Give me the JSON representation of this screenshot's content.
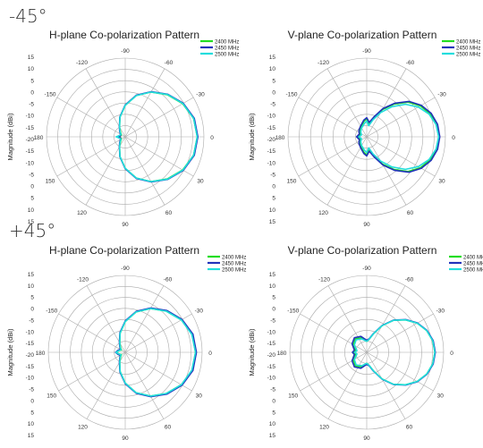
{
  "sections": [
    {
      "label": "-45°"
    },
    {
      "label": "+45°"
    }
  ],
  "colors": {
    "2400 MHz": "#22dd22",
    "2450 MHz": "#2233bb",
    "2500 MHz": "#22dddd",
    "grid": "#aaaaaa"
  },
  "chart_data": [
    {
      "type": "polar-line",
      "title": "H-plane Co-polarization Pattern",
      "ylabel": "Magnitude (dBi)",
      "angle_ticks": [
        "-90",
        "-120",
        "-150",
        "180",
        "150",
        "120",
        "90",
        "60",
        "30",
        "0",
        "-30",
        "-60"
      ],
      "radial_ticks": [
        "15",
        "10",
        "5",
        "0",
        "-5",
        "-10",
        "-15",
        "-20",
        "-15",
        "-10",
        "-5",
        "0",
        "5",
        "10",
        "15"
      ],
      "rlim": [
        -20,
        15
      ],
      "series": [
        {
          "name": "2400 MHz",
          "angles": [
            0,
            15,
            30,
            45,
            60,
            75,
            90,
            105,
            120,
            135,
            150,
            165,
            180,
            195,
            210,
            225,
            240,
            255,
            270,
            285,
            300,
            315,
            330,
            345
          ],
          "values": [
            12,
            11.5,
            9.5,
            6.5,
            3,
            -1,
            -6,
            -11,
            -15,
            -17,
            -18,
            -18,
            -17,
            -18,
            -18,
            -17,
            -15,
            -11,
            -6,
            -1,
            3,
            6.5,
            9.5,
            11.5
          ]
        },
        {
          "name": "2450 MHz",
          "angles": [
            0,
            15,
            30,
            45,
            60,
            75,
            90,
            105,
            120,
            135,
            150,
            165,
            180,
            195,
            210,
            225,
            240,
            255,
            270,
            285,
            300,
            315,
            330,
            345
          ],
          "values": [
            12.3,
            11.8,
            9.8,
            6.8,
            3.2,
            -0.8,
            -5.8,
            -10.8,
            -14.8,
            -16.5,
            -17.5,
            -17.8,
            -17.2,
            -17.8,
            -17.5,
            -16.5,
            -14.8,
            -10.8,
            -5.8,
            -0.8,
            3.2,
            6.8,
            9.8,
            11.8
          ]
        },
        {
          "name": "2500 MHz",
          "angles": [
            0,
            15,
            30,
            45,
            60,
            75,
            90,
            105,
            120,
            135,
            150,
            165,
            180,
            195,
            210,
            225,
            240,
            255,
            270,
            285,
            300,
            315,
            330,
            345
          ],
          "values": [
            12,
            11.5,
            9.6,
            6.6,
            3,
            -1,
            -6,
            -11,
            -15,
            -16.8,
            -17.8,
            -17.5,
            -16,
            -17.5,
            -17.8,
            -16.8,
            -15,
            -11,
            -6,
            -1,
            3,
            6.6,
            9.6,
            11.5
          ]
        }
      ],
      "legend": "top-right"
    },
    {
      "type": "polar-line",
      "title": "V-plane Co-polarization Pattern",
      "ylabel": "Magnitude (dBi)",
      "angle_ticks": [
        "-90",
        "-120",
        "-150",
        "180",
        "150",
        "120",
        "90",
        "60",
        "30",
        "0",
        "-30",
        "-60"
      ],
      "radial_ticks": [
        "15",
        "10",
        "5",
        "0",
        "-5",
        "-10",
        "-15",
        "-20",
        "-15",
        "-10",
        "-5",
        "0",
        "5",
        "10",
        "15"
      ],
      "rlim": [
        -20,
        15
      ],
      "series": [
        {
          "name": "2400 MHz",
          "angles": [
            0,
            10,
            20,
            30,
            40,
            50,
            60,
            70,
            80,
            90,
            100,
            120,
            140,
            160,
            180,
            200,
            220,
            240,
            260,
            270,
            280,
            290,
            300,
            310,
            320,
            330,
            340,
            350
          ],
          "values": [
            12,
            11.5,
            10,
            7.5,
            4,
            -1,
            -6,
            -11,
            -14,
            -12,
            -13,
            -15,
            -16,
            -17,
            -16,
            -17,
            -16,
            -15,
            -13,
            -12,
            -14,
            -11,
            -6,
            -1,
            4,
            7.5,
            10,
            11.5
          ]
        },
        {
          "name": "2450 MHz",
          "angles": [
            0,
            10,
            20,
            30,
            40,
            50,
            60,
            70,
            80,
            90,
            100,
            120,
            140,
            160,
            180,
            200,
            220,
            240,
            260,
            270,
            280,
            290,
            300,
            310,
            320,
            330,
            340,
            350
          ],
          "values": [
            12.5,
            12,
            10.5,
            8,
            4.5,
            -0.5,
            -5.5,
            -10.5,
            -13.5,
            -11.5,
            -12.5,
            -14.5,
            -15.5,
            -16.5,
            -15.5,
            -16.5,
            -15.5,
            -14.5,
            -12.5,
            -11.5,
            -13.5,
            -10.5,
            -5.5,
            -0.5,
            4.5,
            8,
            10.5,
            12
          ]
        },
        {
          "name": "2500 MHz",
          "angles": [
            0,
            10,
            20,
            30,
            40,
            50,
            60,
            70,
            80,
            90,
            100,
            120,
            140,
            160,
            180,
            200,
            220,
            240,
            260,
            270,
            280,
            290,
            300,
            310,
            320,
            330,
            340,
            350
          ],
          "values": [
            12,
            11.3,
            9.5,
            6.5,
            2.5,
            -2.5,
            -7.5,
            -12,
            -15,
            -13,
            -14,
            -15.5,
            -16.5,
            -17.5,
            -16.5,
            -17.5,
            -16.5,
            -15.5,
            -14,
            -13,
            -15,
            -12,
            -7.5,
            -2.5,
            2.5,
            6.5,
            9.5,
            11.3
          ]
        }
      ],
      "legend": "top-right"
    },
    {
      "type": "polar-line",
      "title": "H-plane Co-polarization Pattern",
      "ylabel": "Magnitude (dBi)",
      "angle_ticks": [
        "-90",
        "-120",
        "-150",
        "180",
        "150",
        "120",
        "90",
        "60",
        "30",
        "0",
        "-30",
        "-60"
      ],
      "radial_ticks": [
        "15",
        "10",
        "5",
        "0",
        "-5",
        "-10",
        "-15",
        "-20",
        "-15",
        "-10",
        "-5",
        "0",
        "5",
        "10",
        "15"
      ],
      "rlim": [
        -20,
        15
      ],
      "series": [
        {
          "name": "2400 MHz",
          "angles": [
            0,
            15,
            30,
            45,
            60,
            75,
            90,
            105,
            120,
            135,
            150,
            165,
            180,
            195,
            210,
            225,
            240,
            255,
            270,
            285,
            300,
            315,
            330,
            345
          ],
          "values": [
            12,
            11.5,
            9.5,
            6.5,
            3,
            -1,
            -6,
            -11,
            -15,
            -17,
            -18,
            -17,
            -16,
            -17,
            -18,
            -17,
            -15,
            -11,
            -6,
            -1,
            3,
            6.5,
            9.5,
            11.5
          ]
        },
        {
          "name": "2450 MHz",
          "angles": [
            0,
            15,
            30,
            45,
            60,
            75,
            90,
            105,
            120,
            135,
            150,
            165,
            180,
            195,
            210,
            225,
            240,
            255,
            270,
            285,
            300,
            315,
            330,
            345
          ],
          "values": [
            12.4,
            11.9,
            9.9,
            6.9,
            3.3,
            -0.7,
            -5.7,
            -10.7,
            -14.7,
            -16.5,
            -17.4,
            -16.6,
            -15.6,
            -16.6,
            -17.4,
            -16.5,
            -14.7,
            -10.7,
            -5.7,
            -0.7,
            3.3,
            6.9,
            9.9,
            11.9
          ]
        },
        {
          "name": "2500 MHz",
          "angles": [
            0,
            15,
            30,
            45,
            60,
            75,
            90,
            105,
            120,
            135,
            150,
            165,
            180,
            195,
            210,
            225,
            240,
            255,
            270,
            285,
            300,
            315,
            330,
            345
          ],
          "values": [
            12,
            11.4,
            9.5,
            6.5,
            3,
            -1,
            -6,
            -11,
            -15,
            -16.8,
            -17.8,
            -17,
            -15.8,
            -17,
            -17.8,
            -16.8,
            -15,
            -11,
            -6,
            -1,
            3,
            6.5,
            9.5,
            11.4
          ]
        }
      ],
      "legend": "top-right"
    },
    {
      "type": "polar-line",
      "title": "V-plane Co-polarization Pattern",
      "ylabel": "Magnitude (dBi)",
      "angle_ticks": [
        "-90",
        "-120",
        "-150",
        "180",
        "150",
        "120",
        "90",
        "60",
        "30",
        "0",
        "-30",
        "-60"
      ],
      "radial_ticks": [
        "15",
        "10",
        "5",
        "0",
        "-5",
        "-10",
        "-15",
        "-20",
        "-15",
        "-10",
        "-5",
        "0",
        "5",
        "10",
        "15"
      ],
      "rlim": [
        -20,
        15
      ],
      "series": [
        {
          "name": "2400 MHz",
          "angles": [
            0,
            10,
            20,
            30,
            40,
            50,
            60,
            70,
            80,
            90,
            110,
            130,
            150,
            170,
            180,
            190,
            210,
            230,
            250,
            270,
            280,
            290,
            300,
            310,
            320,
            330,
            340,
            350
          ],
          "values": [
            11,
            10.5,
            9,
            6.5,
            3,
            -1,
            -6,
            -11,
            -14,
            -15,
            -13,
            -12,
            -13,
            -15,
            -14,
            -15,
            -13,
            -12,
            -13,
            -15,
            -14,
            -11,
            -6,
            -1,
            3,
            6.5,
            9,
            10.5
          ]
        },
        {
          "name": "2450 MHz",
          "angles": [
            0,
            10,
            20,
            30,
            40,
            50,
            60,
            70,
            80,
            90,
            110,
            130,
            150,
            170,
            180,
            190,
            210,
            230,
            250,
            270,
            280,
            290,
            300,
            310,
            320,
            330,
            340,
            350
          ],
          "values": [
            11.2,
            10.7,
            9.2,
            6.7,
            3.2,
            -0.8,
            -5.8,
            -10.8,
            -13.8,
            -14.5,
            -12.3,
            -11.3,
            -12.3,
            -14.3,
            -13.5,
            -14.3,
            -12.3,
            -11.3,
            -12.3,
            -14.5,
            -13.8,
            -10.8,
            -5.8,
            -0.8,
            3.2,
            6.7,
            9.2,
            10.7
          ]
        },
        {
          "name": "2500 MHz",
          "angles": [
            0,
            10,
            20,
            30,
            40,
            50,
            60,
            70,
            80,
            90,
            110,
            130,
            150,
            170,
            180,
            190,
            210,
            230,
            250,
            270,
            280,
            290,
            300,
            310,
            320,
            330,
            340,
            350
          ],
          "values": [
            11,
            10.5,
            9,
            6.5,
            3,
            -1,
            -6,
            -11,
            -14,
            -15,
            -13.5,
            -12.5,
            -13.5,
            -15.5,
            -14.5,
            -15.5,
            -13.5,
            -12.5,
            -13.5,
            -15,
            -14,
            -11,
            -6,
            -1,
            3,
            6.5,
            9,
            10.5
          ]
        }
      ],
      "legend": "top-right"
    }
  ]
}
